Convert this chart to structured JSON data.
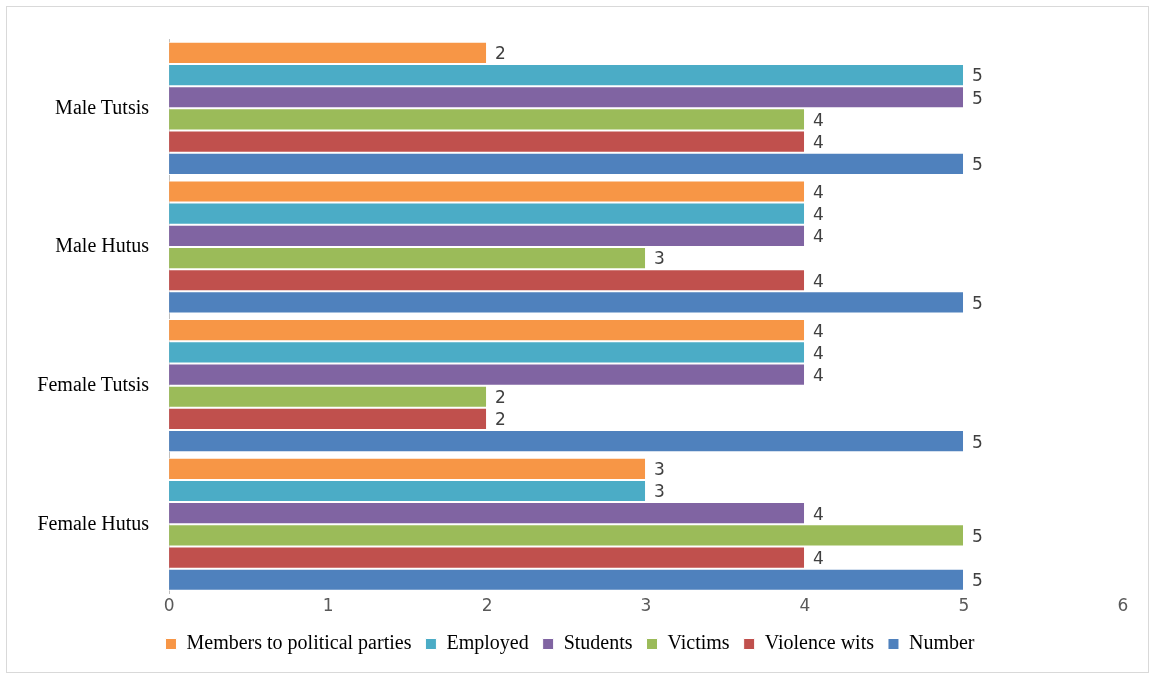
{
  "chart_data": {
    "type": "bar",
    "orientation": "horizontal",
    "categories": [
      "Male Tutsis",
      "Male Hutus",
      "Female Tutsis",
      "Female Hutus"
    ],
    "series": [
      {
        "name": "Members to political parties",
        "color": "#f79646",
        "values": [
          2,
          4,
          4,
          3
        ]
      },
      {
        "name": "Employed",
        "color": "#4bacc6",
        "values": [
          5,
          4,
          4,
          3
        ]
      },
      {
        "name": "Students",
        "color": "#8064a2",
        "values": [
          5,
          4,
          4,
          4
        ]
      },
      {
        "name": "Victims",
        "color": "#9bbb59",
        "values": [
          4,
          3,
          2,
          5
        ]
      },
      {
        "name": "Violence wits",
        "color": "#c0504d",
        "values": [
          4,
          4,
          2,
          4
        ]
      },
      {
        "name": "Number",
        "color": "#4f81bd",
        "values": [
          5,
          5,
          5,
          5
        ]
      }
    ],
    "xlim": [
      0,
      6
    ],
    "xticks": [
      0,
      1,
      2,
      3,
      4,
      5,
      6
    ],
    "grid": false,
    "legend": "bottom",
    "data_labels": true
  }
}
